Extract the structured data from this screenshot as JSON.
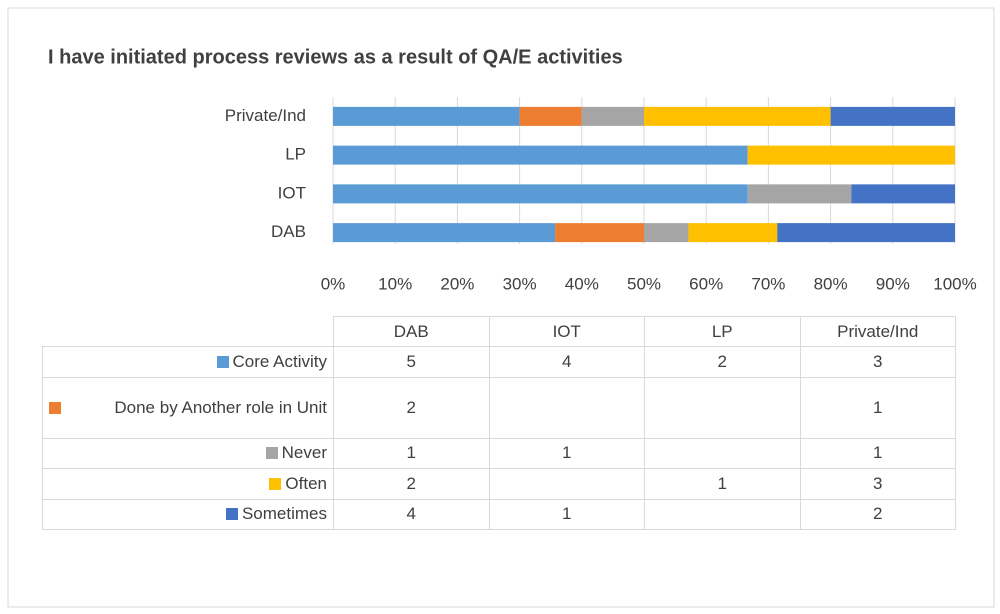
{
  "chart_data": {
    "type": "bar",
    "orientation": "horizontal",
    "stacking": "percent",
    "title": "I have initiated process reviews as a result of QA/E activities",
    "categories": [
      "DAB",
      "IOT",
      "LP",
      "Private/Ind"
    ],
    "series": [
      {
        "name": "Core Activity",
        "color": "#5b9bd5",
        "values": [
          5,
          4,
          2,
          3
        ]
      },
      {
        "name": "Done by Another role in Unit",
        "color": "#ed7d31",
        "values": [
          2,
          null,
          null,
          1
        ]
      },
      {
        "name": "Never",
        "color": "#a5a5a5",
        "values": [
          1,
          1,
          null,
          1
        ]
      },
      {
        "name": "Often",
        "color": "#ffc000",
        "values": [
          2,
          null,
          1,
          3
        ]
      },
      {
        "name": "Sometimes",
        "color": "#4472c4",
        "values": [
          4,
          1,
          null,
          2
        ]
      }
    ],
    "xlim": [
      0,
      100
    ],
    "xticks": [
      {
        "value": 0,
        "label": "0%"
      },
      {
        "value": 10,
        "label": "10%"
      },
      {
        "value": 20,
        "label": "20%"
      },
      {
        "value": 30,
        "label": "30%"
      },
      {
        "value": 40,
        "label": "40%"
      },
      {
        "value": 50,
        "label": "50%"
      },
      {
        "value": 60,
        "label": "60%"
      },
      {
        "value": 70,
        "label": "70%"
      },
      {
        "value": 80,
        "label": "80%"
      },
      {
        "value": 90,
        "label": "90%"
      },
      {
        "value": 100,
        "label": "100%"
      }
    ],
    "grid": true,
    "data_table": true
  }
}
